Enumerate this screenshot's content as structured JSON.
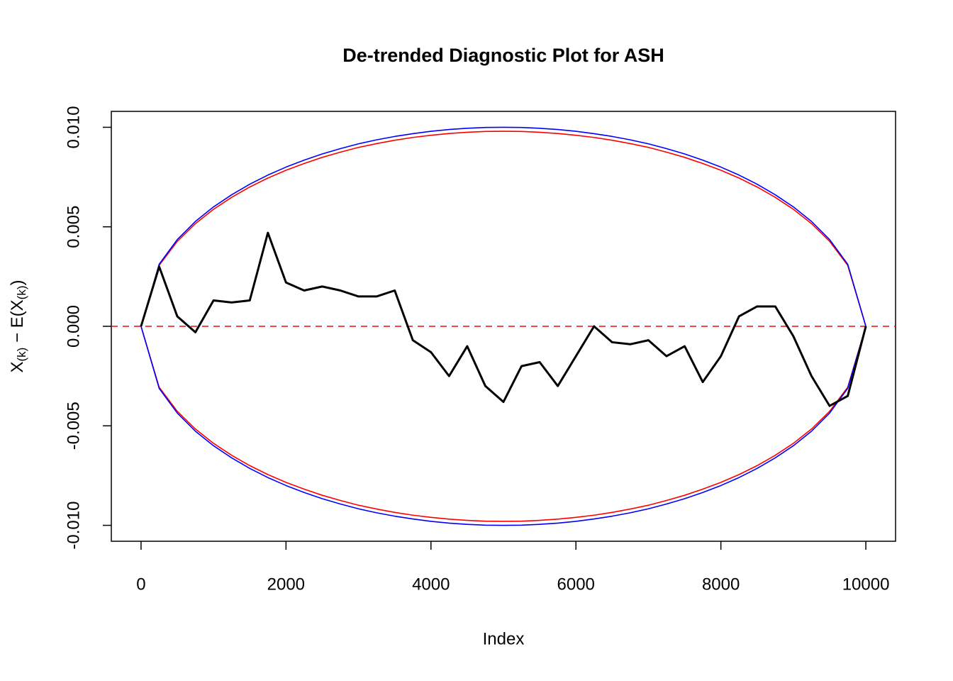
{
  "chart_data": {
    "type": "line",
    "title": "De-trended Diagnostic Plot for ASH",
    "x_label": "Index",
    "y_label_parts": [
      "X",
      "(k)",
      " − E(X",
      "(k)",
      ")"
    ],
    "xlim": [
      -410,
      10410
    ],
    "ylim": [
      -0.0108,
      0.0108
    ],
    "xticks": [
      0,
      2000,
      4000,
      6000,
      8000,
      10000
    ],
    "yticks": [
      {
        "value": -0.01,
        "label": "-0.010"
      },
      {
        "value": -0.005,
        "label": "-0.005"
      },
      {
        "value": 0,
        "label": "0.000"
      },
      {
        "value": 0.005,
        "label": "0.005"
      },
      {
        "value": 0.01,
        "label": "0.010"
      }
    ],
    "reference_line": {
      "value": 0,
      "color": "#ff0000",
      "dashed": true
    },
    "x": [
      0,
      250,
      500,
      750,
      1000,
      1250,
      1500,
      1750,
      2000,
      2250,
      2500,
      2750,
      3000,
      3250,
      3500,
      3750,
      4000,
      4250,
      4500,
      4750,
      5000,
      5250,
      5500,
      5750,
      6000,
      6250,
      6500,
      6750,
      7000,
      7250,
      7500,
      7750,
      8000,
      8250,
      8500,
      8750,
      9000,
      9250,
      9500,
      9750,
      10000
    ],
    "series": [
      {
        "color": "#ff0000",
        "values": [
          0,
          0.00306,
          0.00427,
          0.00516,
          0.00588,
          0.00648,
          0.007,
          0.00745,
          0.00784,
          0.00818,
          0.00849,
          0.00875,
          0.00899,
          0.00918,
          0.00935,
          0.00949,
          0.0096,
          0.00969,
          0.00975,
          0.00979,
          0.0098,
          0.00979,
          0.00975,
          0.00969,
          0.0096,
          0.00949,
          0.00935,
          0.00918,
          0.00899,
          0.00875,
          0.00849,
          0.00818,
          0.00784,
          0.00745,
          0.007,
          0.00648,
          0.00588,
          0.00516,
          0.00427,
          0.00306,
          0
        ]
      },
      {
        "color": "#ff0000",
        "values": [
          0,
          -0.00306,
          -0.00427,
          -0.00516,
          -0.00588,
          -0.00648,
          -0.007,
          -0.00745,
          -0.00784,
          -0.00818,
          -0.00849,
          -0.00875,
          -0.00899,
          -0.00918,
          -0.00935,
          -0.00949,
          -0.0096,
          -0.00969,
          -0.00975,
          -0.00979,
          -0.0098,
          -0.00979,
          -0.00975,
          -0.00969,
          -0.0096,
          -0.00949,
          -0.00935,
          -0.00918,
          -0.00899,
          -0.00875,
          -0.00849,
          -0.00818,
          -0.00784,
          -0.00745,
          -0.007,
          -0.00648,
          -0.00588,
          -0.00516,
          -0.00427,
          -0.00306,
          0
        ]
      },
      {
        "color": "#0000ff",
        "values": [
          0,
          0.00312,
          0.00436,
          0.00527,
          0.006,
          0.00661,
          0.00714,
          0.0076,
          0.008,
          0.00835,
          0.00866,
          0.00893,
          0.00917,
          0.00937,
          0.00954,
          0.00968,
          0.0098,
          0.00989,
          0.00995,
          0.00999,
          0.01,
          0.00999,
          0.00995,
          0.00989,
          0.0098,
          0.00968,
          0.00954,
          0.00937,
          0.00917,
          0.00893,
          0.00866,
          0.00835,
          0.008,
          0.0076,
          0.00714,
          0.00661,
          0.006,
          0.00527,
          0.00436,
          0.00312,
          0
        ]
      },
      {
        "color": "#0000ff",
        "values": [
          0,
          -0.00312,
          -0.00436,
          -0.00527,
          -0.006,
          -0.00661,
          -0.00714,
          -0.0076,
          -0.008,
          -0.00835,
          -0.00866,
          -0.00893,
          -0.00917,
          -0.00937,
          -0.00954,
          -0.00968,
          -0.0098,
          -0.00989,
          -0.00995,
          -0.00999,
          -0.01,
          -0.00999,
          -0.00995,
          -0.00989,
          -0.0098,
          -0.00968,
          -0.00954,
          -0.00937,
          -0.00917,
          -0.00893,
          -0.00866,
          -0.00835,
          -0.008,
          -0.0076,
          -0.00714,
          -0.00661,
          -0.006,
          -0.00527,
          -0.00436,
          -0.00312,
          0
        ]
      },
      {
        "color": "#000000",
        "values": [
          0,
          0.003,
          0.0005,
          -0.0003,
          0.0013,
          0.0012,
          0.0013,
          0.0047,
          0.0022,
          0.0018,
          0.002,
          0.0018,
          0.0015,
          0.0015,
          0.0018,
          -0.0007,
          -0.0013,
          -0.0025,
          -0.001,
          -0.003,
          -0.0038,
          -0.002,
          -0.0018,
          -0.003,
          -0.0015,
          0,
          -0.0008,
          -0.0009,
          -0.0007,
          -0.0015,
          -0.001,
          -0.0028,
          -0.0015,
          0.0005,
          0.001,
          0.001,
          -0.0005,
          -0.0025,
          -0.004,
          -0.0035,
          0
        ]
      }
    ]
  }
}
